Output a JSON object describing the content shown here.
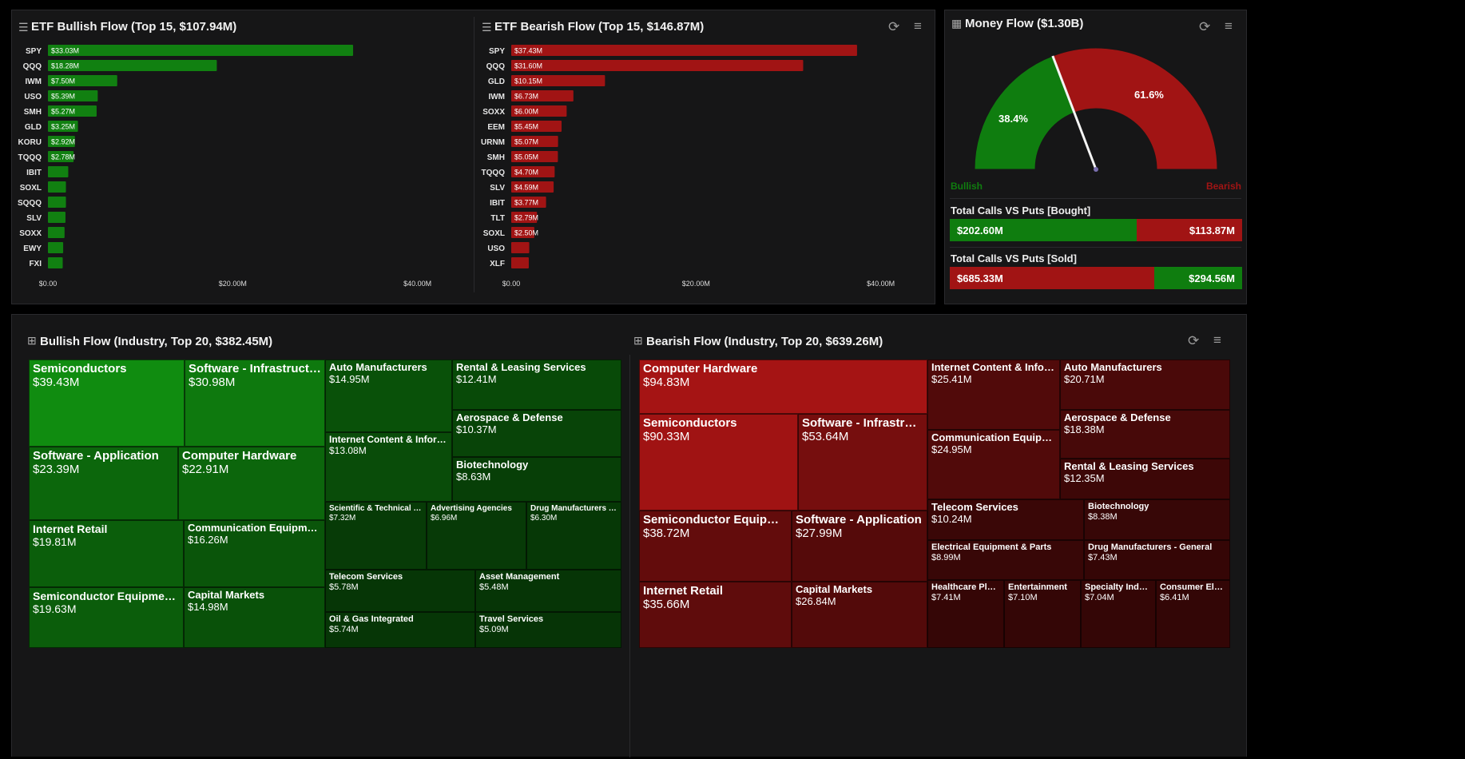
{
  "etf_bullish": {
    "title": "ETF Bullish Flow (Top 15, $107.94M)",
    "x_ticks": [
      "$0.00",
      "$20.00M",
      "$40.00M"
    ],
    "color": "#118011"
  },
  "etf_bearish": {
    "title": "ETF Bearish Flow (Top 15, $146.87M)",
    "x_ticks": [
      "$0.00",
      "$20.00M",
      "$40.00M"
    ],
    "color": "#a11414"
  },
  "money_flow": {
    "title": "Money Flow ($1.30B)",
    "bullish_pct": "38.4%",
    "bearish_pct": "61.6%",
    "bullish_fraction": 0.384,
    "bullish_label": "Bullish",
    "bearish_label": "Bearish",
    "bullish_color": "#0f7d0f",
    "bearish_color": "#a11414",
    "calls_vs_puts_bought": {
      "title": "Total Calls VS Puts [Bought]",
      "calls": "$202.60M",
      "puts": "$113.87M",
      "calls_value": 202.6,
      "puts_value": 113.87
    },
    "calls_vs_puts_sold": {
      "title": "Total Calls VS Puts [Sold]",
      "left": "$685.33M",
      "right": "$294.56M",
      "left_value": 685.33,
      "right_value": 294.56
    }
  },
  "bullish_industry": {
    "title": "Bullish Flow (Industry, Top 20, $382.45M)",
    "cells": [
      {
        "name": "Semiconductors",
        "value": "$39.43M",
        "num": 39.43
      },
      {
        "name": "Software - Infrastructure",
        "value": "$30.98M",
        "num": 30.98
      },
      {
        "name": "Software - Application",
        "value": "$23.39M",
        "num": 23.39
      },
      {
        "name": "Computer Hardware",
        "value": "$22.91M",
        "num": 22.91
      },
      {
        "name": "Internet Retail",
        "value": "$19.81M",
        "num": 19.81
      },
      {
        "name": "Communication Equipment",
        "value": "$16.26M",
        "num": 16.26
      },
      {
        "name": "Semiconductor Equipment &...",
        "value": "$19.63M",
        "num": 19.63
      },
      {
        "name": "Capital Markets",
        "value": "$14.98M",
        "num": 14.98
      },
      {
        "name": "Auto Manufacturers",
        "value": "$14.95M",
        "num": 14.95
      },
      {
        "name": "Rental & Leasing Services",
        "value": "$12.41M",
        "num": 12.41
      },
      {
        "name": "Aerospace & Defense",
        "value": "$10.37M",
        "num": 10.37
      },
      {
        "name": "Internet Content & Informa...",
        "value": "$13.08M",
        "num": 13.08
      },
      {
        "name": "Biotechnology",
        "value": "$8.63M",
        "num": 8.63
      },
      {
        "name": "Scientific & Technical In...",
        "value": "$7.32M",
        "num": 7.32
      },
      {
        "name": "Advertising Agencies",
        "value": "$6.96M",
        "num": 6.96
      },
      {
        "name": "Drug Manufacturers - ...",
        "value": "$6.30M",
        "num": 6.3
      },
      {
        "name": "Telecom Services",
        "value": "$5.78M",
        "num": 5.78
      },
      {
        "name": "Asset Management",
        "value": "$5.48M",
        "num": 5.48
      },
      {
        "name": "Oil & Gas Integrated",
        "value": "$5.74M",
        "num": 5.74
      },
      {
        "name": "Travel Services",
        "value": "$5.09M",
        "num": 5.09
      }
    ]
  },
  "bearish_industry": {
    "title": "Bearish Flow (Industry, Top 20, $639.26M)",
    "cells": [
      {
        "name": "Computer Hardware",
        "value": "$94.83M",
        "num": 94.83
      },
      {
        "name": "Semiconductors",
        "value": "$90.33M",
        "num": 90.33
      },
      {
        "name": "Software - Infrastructure",
        "value": "$53.64M",
        "num": 53.64
      },
      {
        "name": "Semiconductor Equipment ...",
        "value": "$38.72M",
        "num": 38.72
      },
      {
        "name": "Software - Application",
        "value": "$27.99M",
        "num": 27.99
      },
      {
        "name": "Internet Retail",
        "value": "$35.66M",
        "num": 35.66
      },
      {
        "name": "Capital Markets",
        "value": "$26.84M",
        "num": 26.84
      },
      {
        "name": "Internet Content & Informati...",
        "value": "$25.41M",
        "num": 25.41
      },
      {
        "name": "Auto Manufacturers",
        "value": "$20.71M",
        "num": 20.71
      },
      {
        "name": "Communication Equipment",
        "value": "$24.95M",
        "num": 24.95
      },
      {
        "name": "Aerospace & Defense",
        "value": "$18.38M",
        "num": 18.38
      },
      {
        "name": "Rental & Leasing Services",
        "value": "$12.35M",
        "num": 12.35
      },
      {
        "name": "Telecom Services",
        "value": "$10.24M",
        "num": 10.24
      },
      {
        "name": "Biotechnology",
        "value": "$8.38M",
        "num": 8.38
      },
      {
        "name": "Electrical Equipment & Parts",
        "value": "$8.99M",
        "num": 8.99
      },
      {
        "name": "Drug Manufacturers - General",
        "value": "$7.43M",
        "num": 7.43
      },
      {
        "name": "Healthcare Plans",
        "value": "$7.41M",
        "num": 7.41
      },
      {
        "name": "Entertainment",
        "value": "$7.10M",
        "num": 7.1
      },
      {
        "name": "Specialty Industri...",
        "value": "$7.04M",
        "num": 7.04
      },
      {
        "name": "Consumer Electr...",
        "value": "$6.41M",
        "num": 6.41
      }
    ]
  },
  "chart_data": [
    {
      "type": "bar",
      "title": "ETF Bullish Flow (Top 15, $107.94M)",
      "orientation": "horizontal",
      "categories": [
        "SPY",
        "QQQ",
        "IWM",
        "USO",
        "SMH",
        "GLD",
        "KORU",
        "TQQQ",
        "IBIT",
        "SOXL",
        "SQQQ",
        "SLV",
        "SOXX",
        "EWY",
        "FXI"
      ],
      "values": [
        33.03,
        18.28,
        7.5,
        5.39,
        5.27,
        3.25,
        2.92,
        2.78,
        2.2,
        1.95,
        1.95,
        1.9,
        1.8,
        1.65,
        1.6
      ],
      "labels": [
        "$33.03M",
        "$18.28M",
        "$7.50M",
        "$5.39M",
        "$5.27M",
        "$3.25M",
        "$2.92M",
        "$2.78M",
        "",
        "",
        "",
        "",
        "",
        "",
        ""
      ],
      "xlim": [
        0,
        41.5
      ],
      "x_ticks": [
        "$0.00",
        "$20.00M",
        "$40.00M"
      ]
    },
    {
      "type": "bar",
      "title": "ETF Bearish Flow (Top 15, $146.87M)",
      "orientation": "horizontal",
      "categories": [
        "SPY",
        "QQQ",
        "GLD",
        "IWM",
        "SOXX",
        "EEM",
        "URNM",
        "SMH",
        "TQQQ",
        "SLV",
        "IBIT",
        "TLT",
        "SOXL",
        "USO",
        "XLF"
      ],
      "values": [
        37.43,
        31.6,
        10.15,
        6.73,
        6.0,
        5.45,
        5.07,
        5.05,
        4.7,
        4.59,
        3.77,
        2.79,
        2.5,
        1.95,
        1.9
      ],
      "labels": [
        "$37.43M",
        "$31.60M",
        "$10.15M",
        "$6.73M",
        "$6.00M",
        "$5.45M",
        "$5.07M",
        "$5.05M",
        "$4.70M",
        "$4.59M",
        "$3.77M",
        "$2.79M",
        "$2.50M",
        "",
        ""
      ],
      "xlim": [
        0,
        41.5
      ],
      "x_ticks": [
        "$0.00",
        "$20.00M",
        "$40.00M"
      ]
    },
    {
      "type": "pie",
      "title": "Money Flow ($1.30B)",
      "categories": [
        "Bullish",
        "Bearish"
      ],
      "values": [
        38.4,
        61.6
      ]
    }
  ]
}
